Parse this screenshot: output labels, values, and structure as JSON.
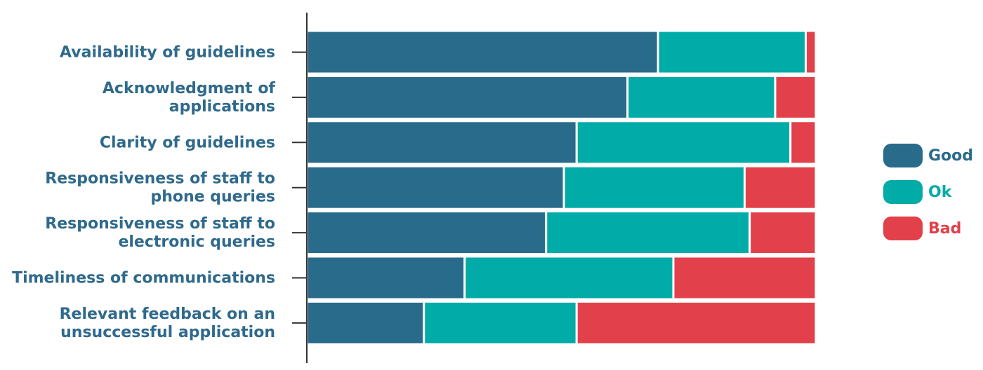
{
  "chart_data": {
    "type": "bar",
    "orientation": "horizontal",
    "stacked": true,
    "normalized": true,
    "categories": [
      [
        "Availability of guidelines"
      ],
      [
        "Acknowledgment of",
        "applications"
      ],
      [
        "Clarity of guidelines"
      ],
      [
        "Responsiveness of staff to",
        "phone queries"
      ],
      [
        "Responsiveness of staff to",
        "electronic queries"
      ],
      [
        "Timeliness of communications"
      ],
      [
        "Relevant feedback on an",
        "unsuccessful application"
      ]
    ],
    "series": [
      {
        "name": "Good",
        "color": "#286b8a",
        "values": [
          69,
          63,
          53,
          50.5,
          47,
          31,
          23
        ]
      },
      {
        "name": "Ok",
        "color": "#00aba8",
        "values": [
          29,
          29,
          42,
          35.5,
          40,
          41,
          30
        ]
      },
      {
        "name": "Bad",
        "color": "#e2404a",
        "values": [
          2,
          8,
          5,
          14,
          13,
          28,
          47
        ]
      }
    ],
    "xlim": [
      0,
      100
    ],
    "legend_position": "right",
    "grid": false
  },
  "legend": [
    {
      "label": "Good",
      "color": "#286b8a"
    },
    {
      "label": "Ok",
      "color": "#00aba8"
    },
    {
      "label": "Bad",
      "color": "#e2404a"
    }
  ]
}
